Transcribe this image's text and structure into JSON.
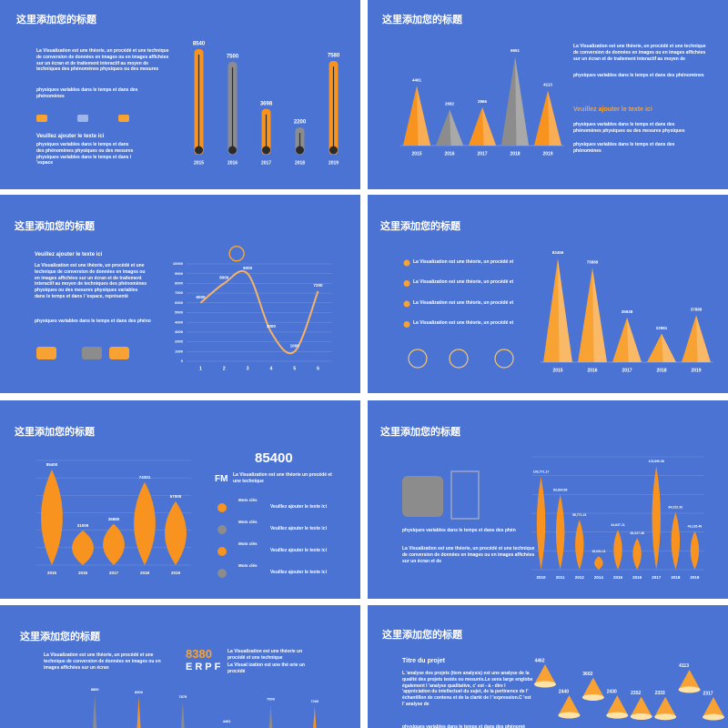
{
  "slides": [
    {
      "title": "这里添加您的标题",
      "paragraphs": [
        "La Visualization est une théorie, un procédé et une technique de conversion de données en images ou en images affichées sur un écran et de traitement interactif au moyen de techniques des phénomènes physiques ou des mesures",
        "physiques variables dans le temps et dans des phénomènes",
        "physiques variables dans le temps et dans des phénomènes physiques ou des mesures physiques variables dans le temps et dans l 'espace"
      ],
      "heading": "Veuillez ajouter le texte ici",
      "chart": {
        "type": "thermometer",
        "categories": [
          "2015",
          "2016",
          "2017",
          "2018",
          "2019"
        ],
        "values": [
          8540,
          7500,
          3698,
          2200,
          7580
        ],
        "colors": [
          "#f7931e",
          "#8c8c8c",
          "#f7931e",
          "#8c8c8c",
          "#f7931e"
        ]
      }
    },
    {
      "title": "这里添加您的标题",
      "paragraphs": [
        "La Visualization est une théorie, un procédé et une technique de conversion de données en images ou en images affichées sur un écran et de traitement interactif au moyen de",
        "physiques variables dans le temps et dans des phénomènes",
        "physiques variables dans le temps et dans des phénomènes physiques ou des mesures physiques",
        "physiques variables dans le temps et dans des phénomènes"
      ],
      "heading": "Veuillez ajouter le texte ici",
      "chart": {
        "type": "peak",
        "categories": [
          "2015",
          "2016",
          "2017",
          "2018",
          "2019"
        ],
        "values": [
          4461,
          2682,
          2866,
          6651,
          4113
        ],
        "colors": [
          "#f7931e",
          "#8c8c8c",
          "#f7931e",
          "#8c8c8c",
          "#f7931e"
        ]
      }
    },
    {
      "title": "这里添加您的标题",
      "heading": "Veuillez ajouter le texte ici",
      "paragraphs": [
        "La Visualization est une théorie, un procédé et une technique de conversion de données en images ou en images affichées sur un écran et de traitement interactif au moyen de techniques des phénomènes physiques ou des mesures physiques variables dans le temps et dans l 'espace, représenté",
        "physiques variables dans le temps et dans des phéno"
      ],
      "chart": {
        "type": "line",
        "x": [
          1,
          2,
          3,
          4,
          5,
          6
        ],
        "values": [
          6000,
          8000,
          9000,
          3000,
          1000,
          7200
        ],
        "color": "#f7b267",
        "xlim": [
          0.4,
          6.6
        ],
        "xticks": [
          1,
          2,
          3,
          4,
          5,
          6
        ],
        "ylim": [
          0,
          10000
        ],
        "yticks": [
          0,
          1000,
          2000,
          3000,
          4000,
          5000,
          6000,
          7000,
          8000,
          9000,
          10000
        ],
        "grid": true
      }
    },
    {
      "title": "这里添加您的标题",
      "items": [
        "La Visualization est une théorie, un procédé et",
        "La Visualization est une théorie, un procédé et",
        "La Visualization est une théorie, un procédé et",
        "La Visualization est une théorie, un procédé et"
      ],
      "chart": {
        "type": "peak",
        "categories": [
          "2015",
          "2016",
          "2017",
          "2018",
          "2019"
        ],
        "values": [
          83456,
          75888,
          35938,
          22981,
          37888
        ],
        "colors": [
          "#f7a233",
          "#f7a233",
          "#f7a233",
          "#f7a233",
          "#f7a233"
        ]
      }
    },
    {
      "title": "这里添加您的标题",
      "big_number": "85400",
      "code": "FM",
      "paragraphs": [
        "La Visualization est une théorie un procédé et une technique"
      ],
      "items": [
        {
          "label": "Mots clés",
          "text": "Veuillez ajouter le texte ici"
        },
        {
          "label": "Mots clés",
          "text": "Veuillez ajouter le texte ici"
        },
        {
          "label": "Mots clés",
          "text": "Veuillez ajouter le texte ici"
        },
        {
          "label": "Mots clés",
          "text": "Veuillez ajouter le texte ici"
        }
      ],
      "chart": {
        "type": "petal",
        "categories": [
          "2015",
          "2016",
          "2017",
          "2018",
          "2019"
        ],
        "values": [
          85400,
          31009,
          36880,
          74301,
          57000
        ],
        "color": "#f7931e"
      }
    },
    {
      "title": "这里添加您的标题",
      "paragraphs": [
        "physiques variables dans le temps et dans des phén",
        "La Visualization est une théorie, un procédé et une technique de conversion de données en images ou en images affichées sur un écran et de"
      ],
      "chart": {
        "type": "spindle",
        "categories": [
          "2010",
          "2011",
          "2012",
          "2014",
          "2015",
          "2016",
          "2017",
          "2018",
          "2019"
        ],
        "values": [
          103771.17,
          83634.66,
          55771.21,
          15031.11,
          44637.11,
          35227.38,
          115690.36,
          64222.33,
          43126.46
        ],
        "value_labels": [
          "103,771.17",
          "83,634.66",
          "55,771.21",
          "15,031.11",
          "44,637.11",
          "35,227.38",
          "115,690.36",
          "64,222.33",
          "43,126.46"
        ],
        "color": "#f7931e"
      }
    },
    {
      "title": "这里添加您的标题",
      "paragraphs": [
        "La Visualization est une théorie, un procédé et une technique de conversion de données en images ou en images affichées sur un écran",
        "La Visualization est une théorie un procédé et une technique",
        "La Visual ization est une thé orie un procédé"
      ],
      "big_number": "8380",
      "code": "ERPF",
      "chart": {
        "type": "spike",
        "values": [
          8850,
          8500,
          7875,
          4451,
          7500,
          7200
        ],
        "colors": [
          "#8c8c8c",
          "#f7931e",
          "#8c8c8c",
          "#f7931e",
          "#8c8c8c",
          "#f7931e"
        ]
      }
    },
    {
      "title": "这里添加您的标题",
      "heading": "Titre du projet",
      "paragraphs": [
        "L 'analyse des projets (item analysis) est une analyse de la qualité des projets testés ou mesurés.Le sens large englobe également l 'analyse qualitative, c' est - à - dire l 'appréciation du intellectuel du sujet, de la pertinence de l' échantillon de contenu et de la clarté de l 'expression.C 'est l' analyse de",
        "physiques variables dans le temps et dans des phénomè"
      ],
      "chart": {
        "type": "cone",
        "values": [
          4462,
          2440,
          3602,
          2430,
          2352,
          2333,
          4113,
          2317
        ],
        "color": "#f7a233"
      }
    }
  ]
}
